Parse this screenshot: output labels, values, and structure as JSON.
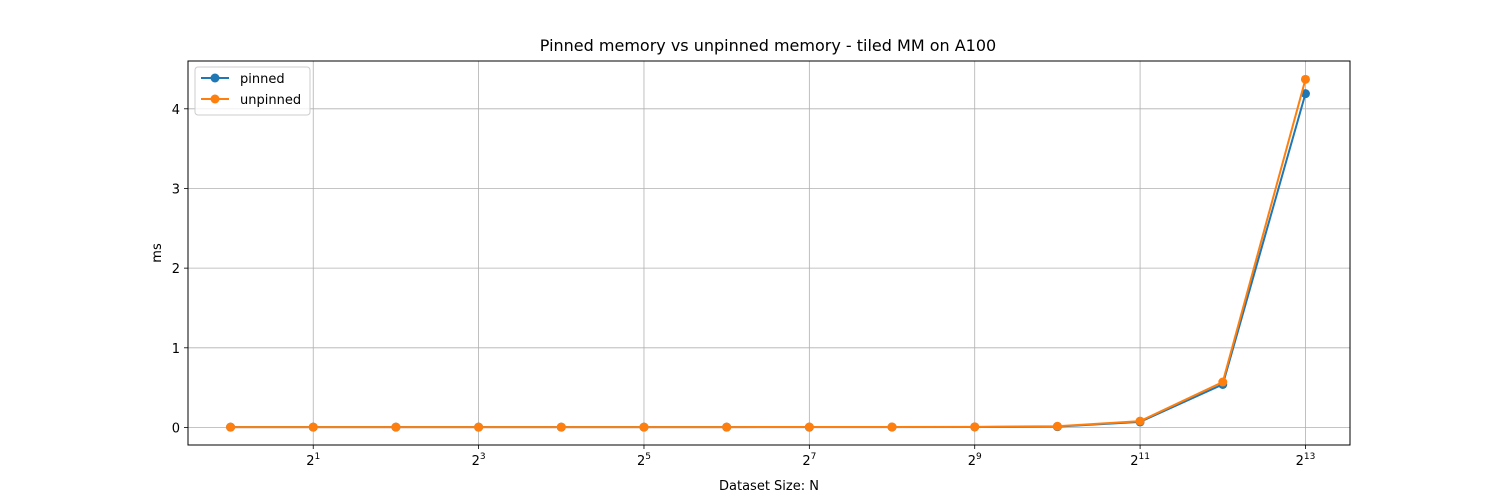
{
  "chart_data": {
    "type": "line",
    "title": "Pinned memory vs unpinned memory - tiled MM on A100",
    "xlabel": "Dataset Size: N",
    "ylabel": "ms",
    "x_scale": "log2",
    "x": [
      1,
      2,
      4,
      8,
      16,
      32,
      64,
      128,
      256,
      512,
      1024,
      2048,
      4096,
      8192
    ],
    "xlim": [
      0.7,
      11900
    ],
    "x_ticks": [
      {
        "value": 2,
        "base": "2",
        "exp": "1"
      },
      {
        "value": 8,
        "base": "2",
        "exp": "3"
      },
      {
        "value": 32,
        "base": "2",
        "exp": "5"
      },
      {
        "value": 128,
        "base": "2",
        "exp": "7"
      },
      {
        "value": 512,
        "base": "2",
        "exp": "9"
      },
      {
        "value": 2048,
        "base": "2",
        "exp": "11"
      },
      {
        "value": 8192,
        "base": "2",
        "exp": "13"
      }
    ],
    "ylim": [
      -0.22,
      4.6
    ],
    "y_ticks": [
      "0",
      "1",
      "2",
      "3",
      "4"
    ],
    "grid": true,
    "legend_position": "top-left",
    "series": [
      {
        "name": "pinned",
        "color": "#1f77b4",
        "values": [
          0.004,
          0.004,
          0.004,
          0.004,
          0.004,
          0.004,
          0.004,
          0.004,
          0.005,
          0.006,
          0.01,
          0.07,
          0.54,
          4.19
        ]
      },
      {
        "name": "unpinned",
        "color": "#ff7f0e",
        "values": [
          0.005,
          0.005,
          0.005,
          0.005,
          0.005,
          0.005,
          0.005,
          0.006,
          0.006,
          0.008,
          0.015,
          0.08,
          0.57,
          4.37
        ]
      }
    ]
  }
}
